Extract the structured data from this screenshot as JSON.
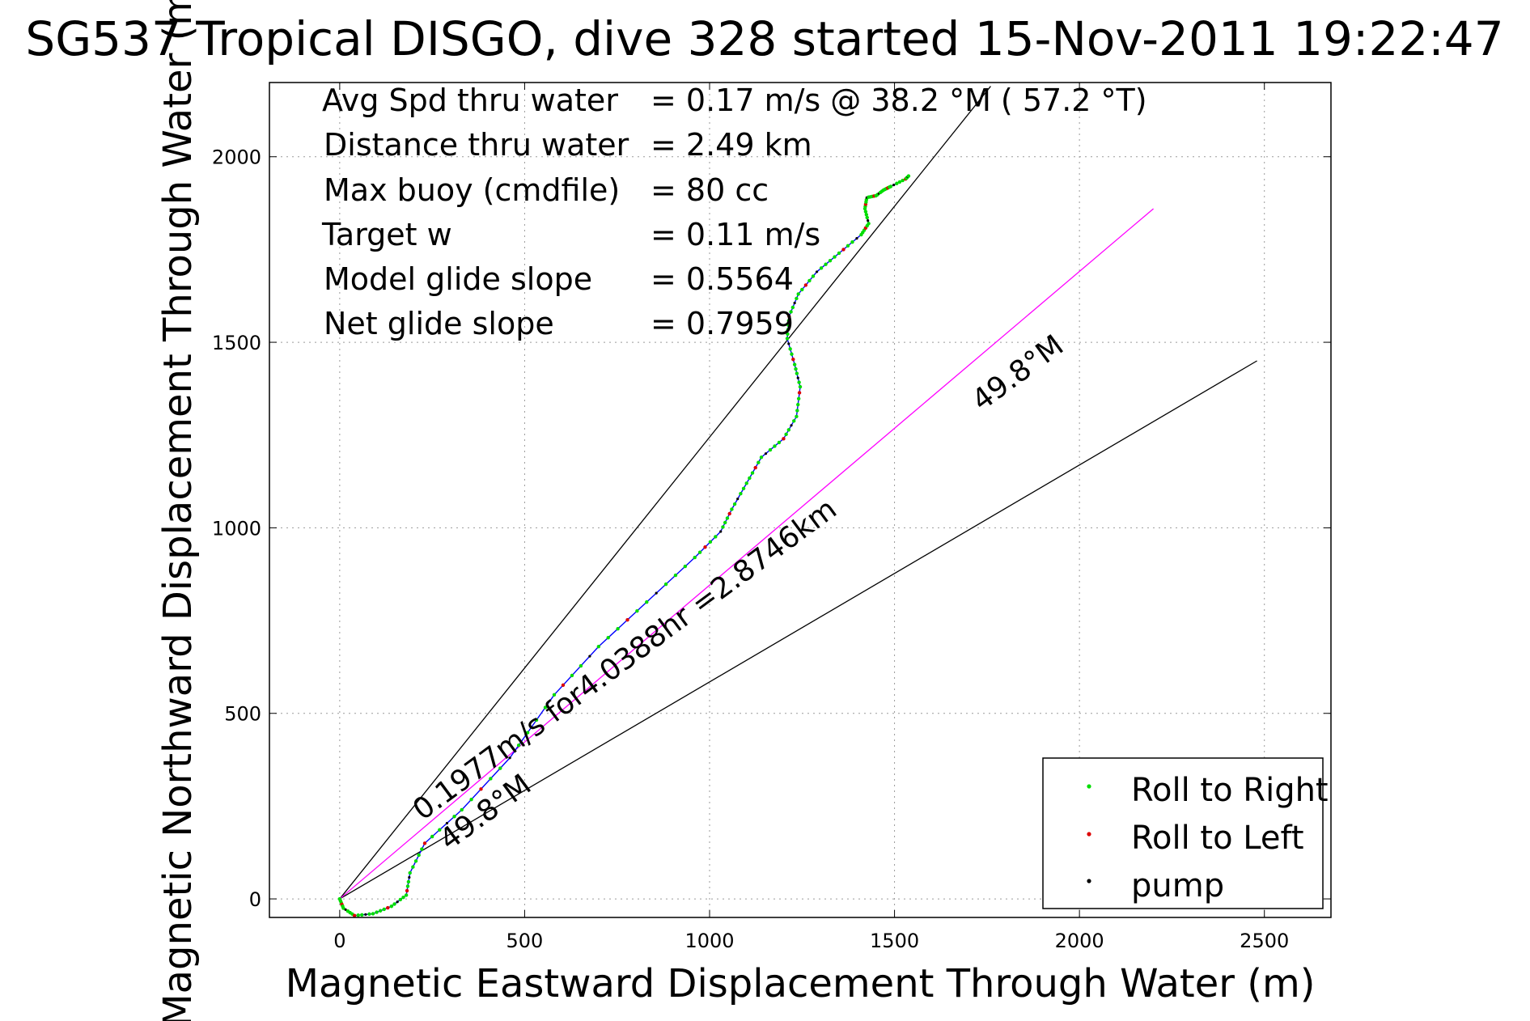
{
  "title": "SG537 Tropical DISGO, dive 328 started 15-Nov-2011 19:22:47",
  "chart_data": {
    "type": "line",
    "xlabel": "Magnetic Eastward Displacement Through Water (m)",
    "ylabel": "Magnetic Northward Displacement Through Water (m)",
    "xlim": [
      -190,
      2680
    ],
    "ylim": [
      -50,
      2200
    ],
    "xticks": [
      0,
      500,
      1000,
      1500,
      2000,
      2500
    ],
    "yticks": [
      0,
      500,
      1000,
      1500,
      2000
    ],
    "grid": true,
    "stats": [
      {
        "label": "Avg Spd thru water",
        "value": "=  0.17 m/s @  38.2 °M ( 57.2 °T)"
      },
      {
        "label": "Distance thru water",
        "value": "=  2.49 km"
      },
      {
        "label": "Max buoy (cmdfile)",
        "value": "= 80 cc"
      },
      {
        "label": "Target w",
        "value": "= 0.11 m/s"
      },
      {
        "label": "Model glide slope",
        "value": "= 0.5564"
      },
      {
        "label": "Net glide slope",
        "value": "= 0.7959"
      }
    ],
    "annotations": {
      "speed": "0.1977m/s for4.0388hr =2.8746km",
      "heading_near": "49.8°M",
      "heading_far": "49.8°M"
    },
    "reference_lines": [
      {
        "name": "upper-bound",
        "color": "#000000",
        "x": [
          0,
          1760
        ],
        "y": [
          0,
          2190
        ]
      },
      {
        "name": "lower-bound",
        "color": "#000000",
        "x": [
          0,
          2480
        ],
        "y": [
          0,
          1450
        ]
      },
      {
        "name": "heading-49.8",
        "color": "#ff00ff",
        "x": [
          0,
          2200
        ],
        "y": [
          0,
          1860
        ]
      }
    ],
    "track": {
      "color": "#0000ff",
      "x": [
        0,
        10,
        40,
        90,
        140,
        180,
        190,
        230,
        330,
        460,
        580,
        700,
        830,
        960,
        1030,
        1060,
        1100,
        1140,
        1200,
        1235,
        1245,
        1230,
        1210,
        1215,
        1240,
        1290,
        1350,
        1410,
        1430,
        1420,
        1425,
        1450,
        1470,
        1490,
        1530,
        1540
      ],
      "y": [
        0,
        -25,
        -45,
        -40,
        -20,
        10,
        70,
        150,
        240,
        380,
        550,
        680,
        800,
        920,
        990,
        1050,
        1120,
        1190,
        1240,
        1300,
        1380,
        1440,
        1510,
        1570,
        1630,
        1690,
        1740,
        1790,
        1820,
        1860,
        1890,
        1895,
        1910,
        1920,
        1940,
        1950
      ]
    },
    "series": [
      {
        "name": "Roll to Right",
        "color": "#00dd00"
      },
      {
        "name": "Roll to Left",
        "color": "#dd0000"
      },
      {
        "name": "pump",
        "color": "#000000"
      }
    ],
    "legend_position": "bottom-right"
  }
}
